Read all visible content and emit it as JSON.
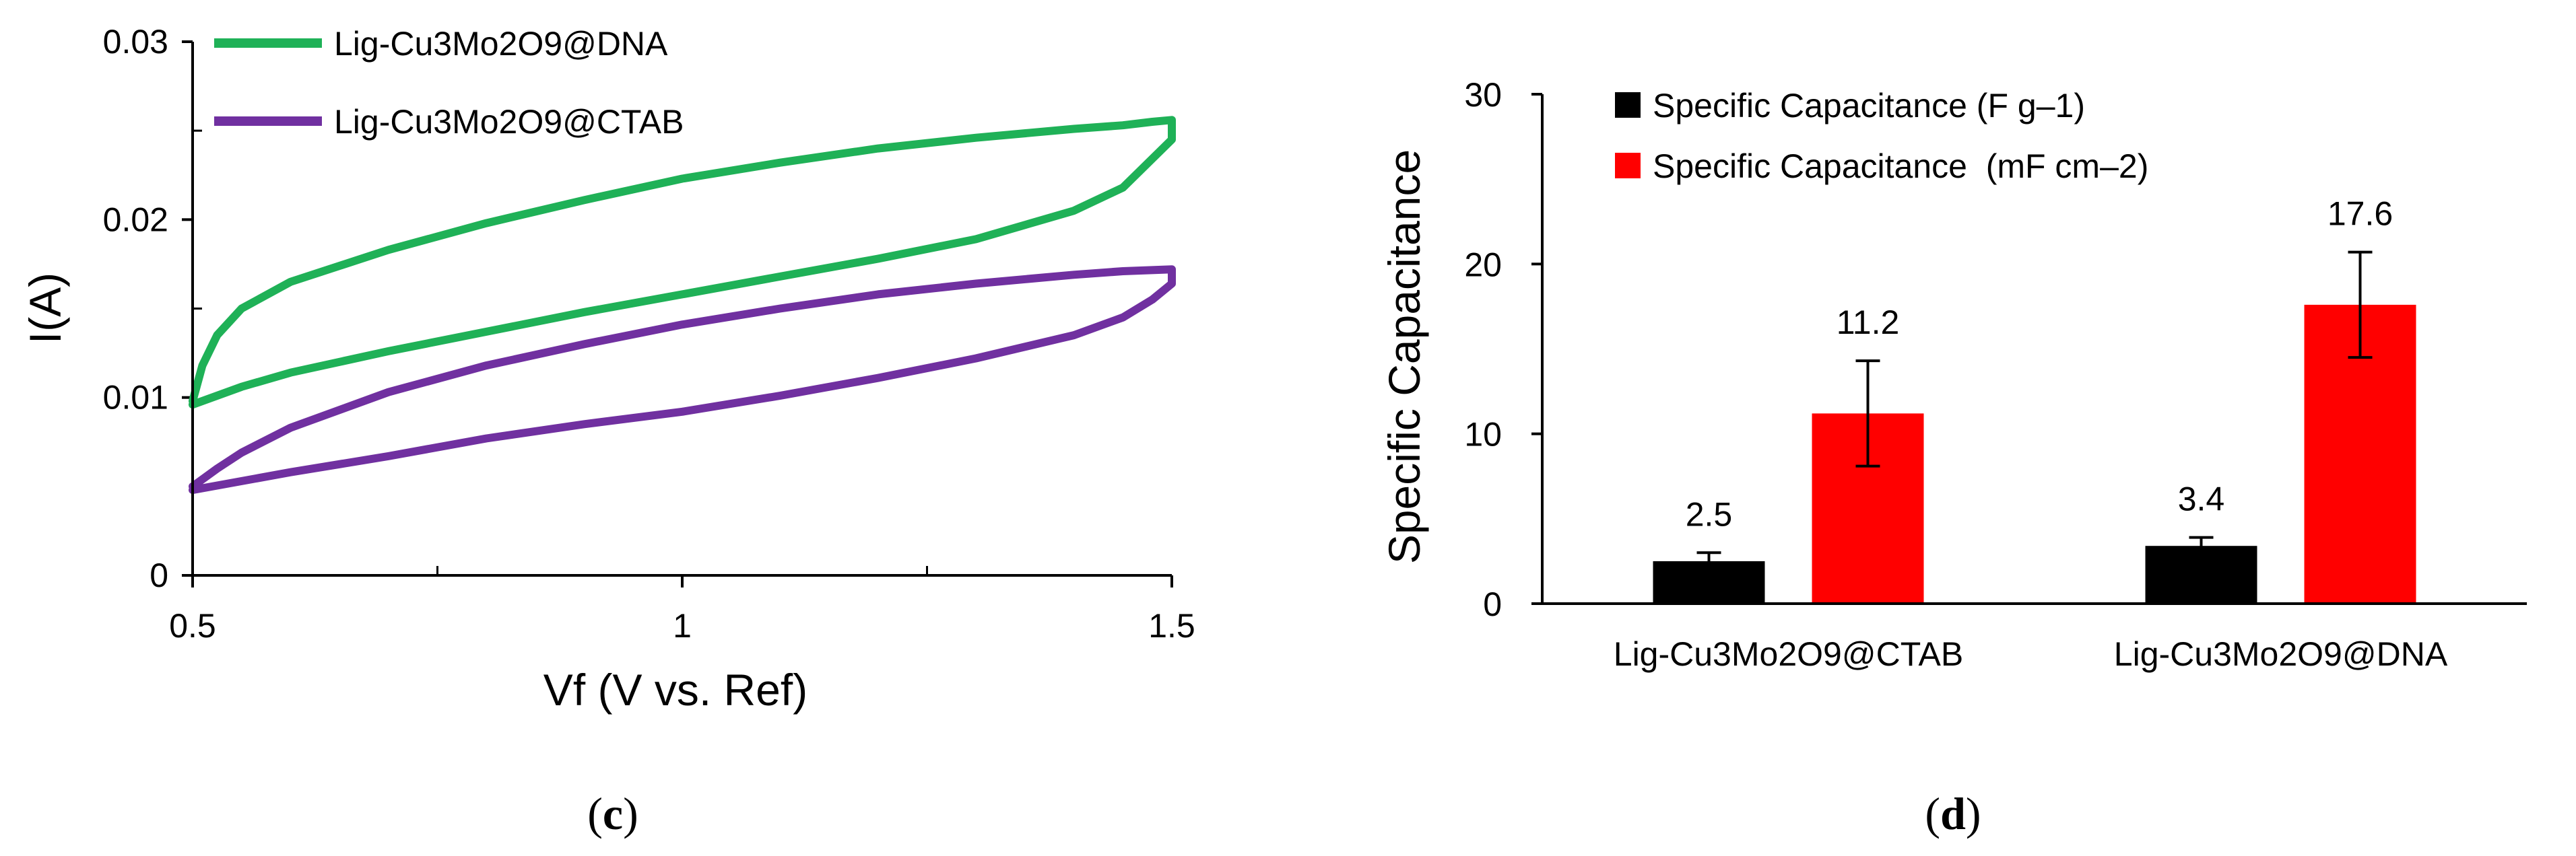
{
  "chart_data": [
    {
      "panel": "(c)",
      "panel_letter": "c",
      "type": "line",
      "title": "",
      "xlabel": "Vf (V vs. Ref)",
      "ylabel": "I(A)",
      "xlim": [
        0.5,
        1.5
      ],
      "ylim": [
        0,
        0.03
      ],
      "xticks": [
        "0.5",
        "1",
        "1.5"
      ],
      "xtick_values": [
        0.5,
        1,
        1.5
      ],
      "yticks": [
        "0",
        "0.01",
        "0.02",
        "0.03"
      ],
      "ytick_values": [
        0,
        0.01,
        0.02,
        0.03
      ],
      "grid": false,
      "legend_position": "top-left",
      "series": [
        {
          "name": "Lig-Cu3Mo2O9@DNA",
          "color": "#1fb157",
          "x": [
            0.5,
            0.51,
            0.525,
            0.55,
            0.6,
            0.7,
            0.8,
            0.9,
            1.0,
            1.1,
            1.2,
            1.3,
            1.4,
            1.45,
            1.48,
            1.5,
            1.5,
            1.45,
            1.4,
            1.3,
            1.2,
            1.1,
            1.0,
            0.9,
            0.8,
            0.7,
            0.6,
            0.55,
            0.5
          ],
          "y": [
            0.0098,
            0.0118,
            0.0135,
            0.015,
            0.0165,
            0.0183,
            0.0198,
            0.0211,
            0.0223,
            0.0232,
            0.024,
            0.0246,
            0.0251,
            0.0253,
            0.0255,
            0.0256,
            0.0245,
            0.0218,
            0.0205,
            0.0189,
            0.0178,
            0.0168,
            0.0158,
            0.0148,
            0.0137,
            0.0126,
            0.0114,
            0.0106,
            0.0096
          ]
        },
        {
          "name": "Lig-Cu3Mo2O9@CTAB",
          "color": "#7030a0",
          "x": [
            0.5,
            0.525,
            0.55,
            0.6,
            0.7,
            0.8,
            0.9,
            1.0,
            1.1,
            1.2,
            1.3,
            1.4,
            1.45,
            1.5,
            1.5,
            1.48,
            1.45,
            1.4,
            1.3,
            1.2,
            1.1,
            1.0,
            0.9,
            0.8,
            0.7,
            0.6,
            0.5
          ],
          "y": [
            0.005,
            0.006,
            0.0069,
            0.0083,
            0.0103,
            0.0118,
            0.013,
            0.0141,
            0.015,
            0.0158,
            0.0164,
            0.0169,
            0.0171,
            0.0172,
            0.0164,
            0.0155,
            0.0145,
            0.0135,
            0.0122,
            0.0111,
            0.0101,
            0.0092,
            0.0085,
            0.0077,
            0.0067,
            0.0058,
            0.0048
          ]
        }
      ]
    },
    {
      "panel": "(d)",
      "panel_letter": "d",
      "type": "bar",
      "title": "",
      "xlabel": "",
      "ylabel": "Specific Capacitance",
      "ylim": [
        0,
        30
      ],
      "yticks": [
        "0",
        "10",
        "20",
        "30"
      ],
      "ytick_values": [
        0,
        10,
        20,
        30
      ],
      "grid": false,
      "legend_position": "top-left",
      "categories": [
        "Lig-Cu3Mo2O9@CTAB",
        "Lig-Cu3Mo2O9@DNA"
      ],
      "series": [
        {
          "name": "Specific Capacitance (F g–1)",
          "color": "#000000",
          "values": [
            2.5,
            3.4
          ],
          "errors": [
            0.5,
            0.5
          ],
          "labels": [
            "2.5",
            "3.4"
          ]
        },
        {
          "name": "Specific Capacitance  (mF cm–2)",
          "color": "#ff0000",
          "values": [
            11.2,
            17.6
          ],
          "errors": [
            3.1,
            3.1
          ],
          "labels": [
            "11.2",
            "17.6"
          ]
        }
      ]
    }
  ]
}
